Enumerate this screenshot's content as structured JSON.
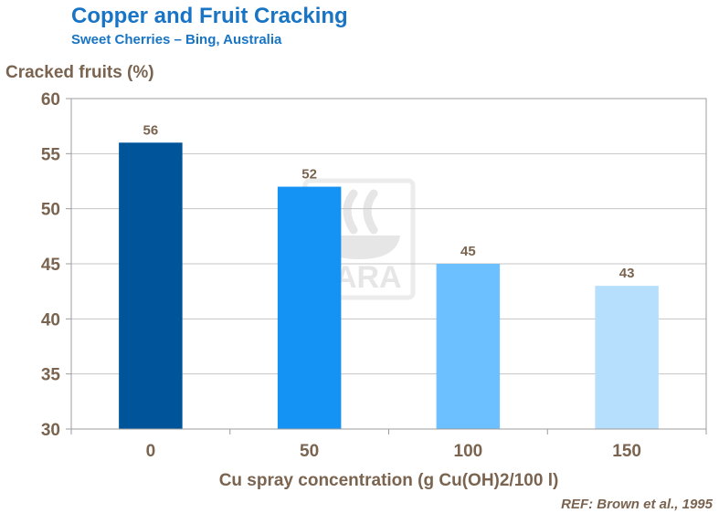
{
  "header": {
    "title": "Copper and Fruit Cracking",
    "subtitle": "Sweet Cherries – Bing, Australia"
  },
  "watermark": {
    "text": "YARA",
    "icon": "yara-viking-ship-logo"
  },
  "reference": "REF: Brown et al., 1995",
  "chart_data": {
    "type": "bar",
    "title": "Copper and Fruit Cracking",
    "subtitle": "Sweet Cherries – Bing, Australia",
    "xlabel": "Cu spray concentration (g Cu(OH)2/100 l)",
    "ylabel": "Cracked fruits (%)",
    "categories": [
      "0",
      "50",
      "100",
      "150"
    ],
    "values": [
      56,
      52,
      45,
      43
    ],
    "data_labels": [
      "56",
      "52",
      "45",
      "43"
    ],
    "bar_colors": [
      "#00559a",
      "#1593f4",
      "#6cc0ff",
      "#b6defd"
    ],
    "ylim": [
      30,
      60
    ],
    "yticks": [
      30,
      35,
      40,
      45,
      50,
      55,
      60
    ],
    "grid": true,
    "legend": "none"
  }
}
